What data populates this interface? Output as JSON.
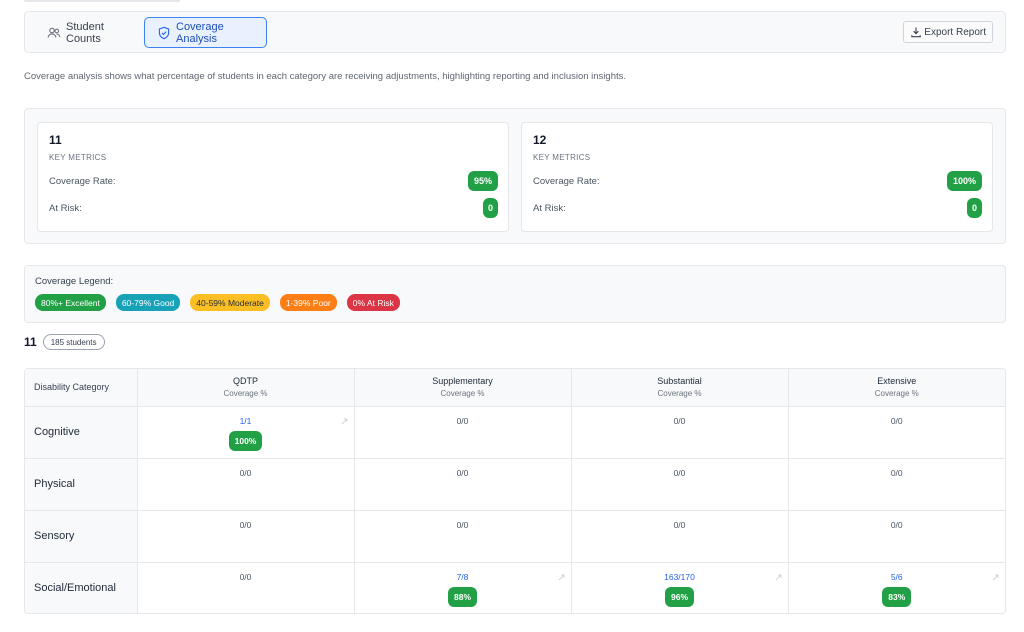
{
  "tabs": [
    {
      "label": "Student Counts",
      "icon": "users-icon",
      "active": false
    },
    {
      "label": "Coverage Analysis",
      "icon": "shield-icon",
      "active": true
    }
  ],
  "export": {
    "label": "Export Report",
    "icon": "download-icon"
  },
  "description": "Coverage analysis shows what percentage of students in each category are receiving adjustments, highlighting reporting and inclusion insights.",
  "metric_cards": [
    {
      "title": "11",
      "subtitle": "KEY METRICS",
      "coverage_label": "Coverage Rate:",
      "coverage_value": "95%",
      "risk_label": "At Risk:",
      "risk_value": "0"
    },
    {
      "title": "12",
      "subtitle": "KEY METRICS",
      "coverage_label": "Coverage Rate:",
      "coverage_value": "100%",
      "risk_label": "At Risk:",
      "risk_value": "0"
    }
  ],
  "legend": {
    "title": "Coverage Legend:",
    "items": [
      {
        "label": "80%+ Excellent",
        "color": "#22a046"
      },
      {
        "label": "60-79% Good",
        "color": "#17a2b8"
      },
      {
        "label": "40-59% Moderate",
        "color": "#fbbf24"
      },
      {
        "label": "1-39% Poor",
        "color": "#fd7e14"
      },
      {
        "label": "0% At Risk",
        "color": "#dc3545"
      }
    ]
  },
  "group": {
    "title": "11",
    "count": "185 students"
  },
  "table": {
    "category_header": "Disability Category",
    "columns": [
      {
        "name": "QDTP",
        "sub": "Coverage %"
      },
      {
        "name": "Supplementary",
        "sub": "Coverage %"
      },
      {
        "name": "Substantial",
        "sub": "Coverage %"
      },
      {
        "name": "Extensive",
        "sub": "Coverage %"
      }
    ],
    "rows": [
      {
        "category": "Cognitive",
        "cells": [
          {
            "value": "1/1",
            "percent": "100%"
          },
          {
            "value": "0/0"
          },
          {
            "value": "0/0"
          },
          {
            "value": "0/0"
          }
        ]
      },
      {
        "category": "Physical",
        "cells": [
          {
            "value": "0/0"
          },
          {
            "value": "0/0"
          },
          {
            "value": "0/0"
          },
          {
            "value": "0/0"
          }
        ]
      },
      {
        "category": "Sensory",
        "cells": [
          {
            "value": "0/0"
          },
          {
            "value": "0/0"
          },
          {
            "value": "0/0"
          },
          {
            "value": "0/0"
          }
        ]
      },
      {
        "category": "Social/Emotional",
        "cells": [
          {
            "value": "0/0"
          },
          {
            "value": "7/8",
            "percent": "88%"
          },
          {
            "value": "163/170",
            "percent": "96%"
          },
          {
            "value": "5/6",
            "percent": "83%"
          }
        ]
      }
    ]
  }
}
